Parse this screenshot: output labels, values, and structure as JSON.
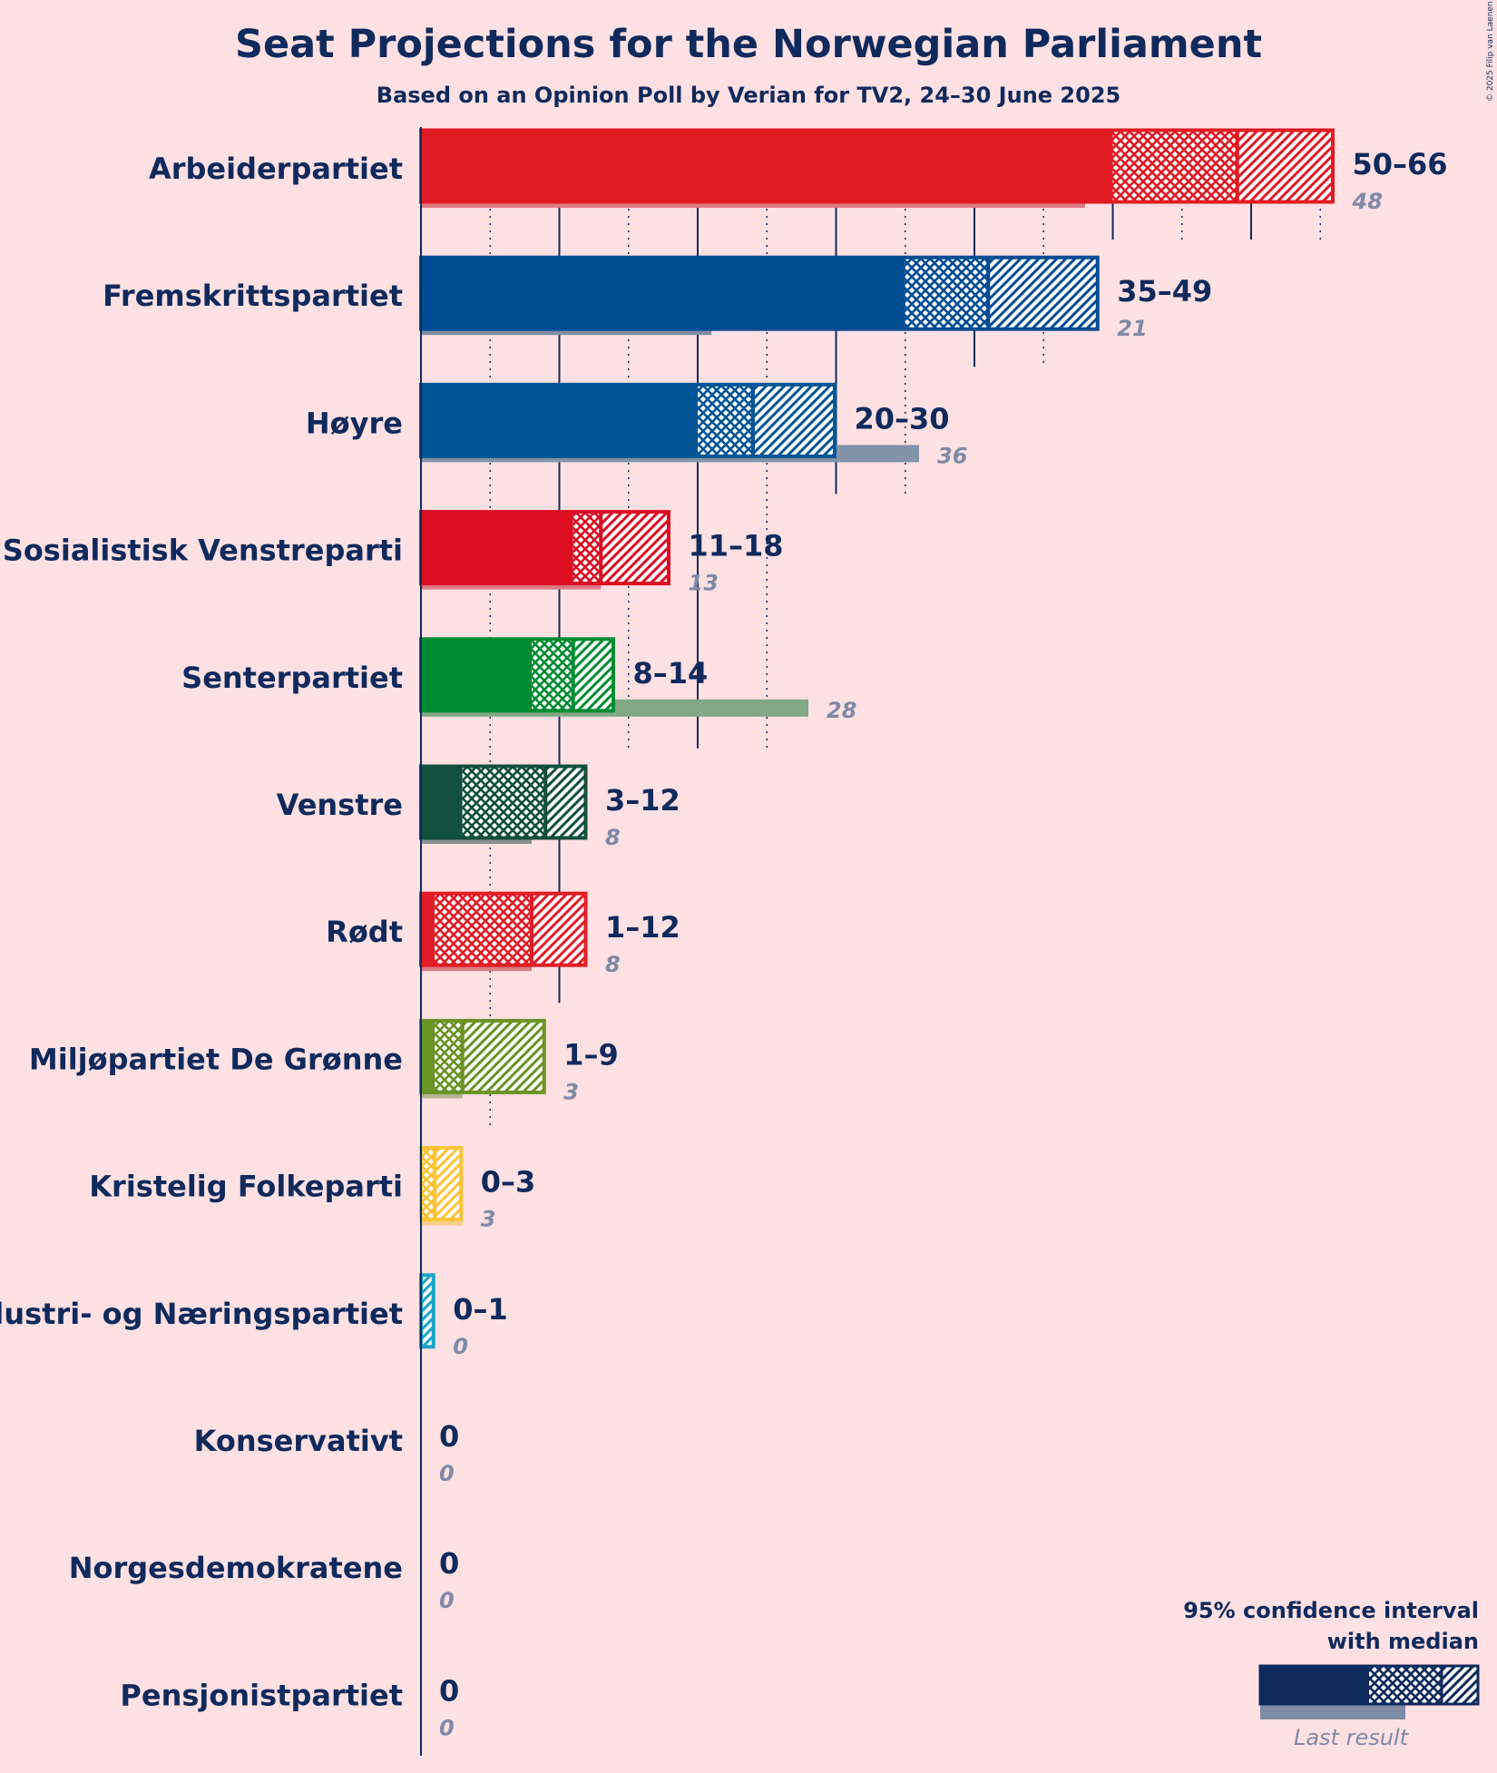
{
  "title": "Seat Projections for the Norwegian Parliament",
  "subtitle": "Based on an Opinion Poll by Verian for TV2, 24–30 June 2025",
  "copyright": "© 2025 Filip van Laenen",
  "legend": {
    "line1": "95% confidence interval",
    "line2": "with median",
    "last_result": "Last result"
  },
  "chart_data": {
    "type": "bar",
    "orientation": "horizontal",
    "title": "Seat Projections for the Norwegian Parliament",
    "xlim": [
      0,
      66
    ],
    "x_gridlines_every": 5,
    "parties": [
      {
        "name": "Arbeiderpartiet",
        "low": 50,
        "median": 59,
        "high": 66,
        "range_label": "50–66",
        "last": 48,
        "last_label": "48",
        "color": "#e01b24",
        "last_color": "#dc7c82"
      },
      {
        "name": "Fremskrittspartiet",
        "low": 35,
        "median": 41,
        "high": 49,
        "range_label": "35–49",
        "last": 21,
        "last_label": "21",
        "color": "#024c93",
        "last_color": "#7f8ea8"
      },
      {
        "name": "Høyre",
        "low": 20,
        "median": 24,
        "high": 30,
        "range_label": "20–30",
        "last": 36,
        "last_label": "36",
        "color": "#025595",
        "last_color": "#8293aa"
      },
      {
        "name": "Sosialistisk Venstreparti",
        "low": 11,
        "median": 13,
        "high": 18,
        "range_label": "11–18",
        "last": 13,
        "last_label": "13",
        "color": "#dc0c21",
        "last_color": "#dc7a85"
      },
      {
        "name": "Senterpartiet",
        "low": 8,
        "median": 11,
        "high": 14,
        "range_label": "8–14",
        "last": 28,
        "last_label": "28",
        "color": "#008c32",
        "last_color": "#82a886"
      },
      {
        "name": "Venstre",
        "low": 3,
        "median": 9,
        "high": 12,
        "range_label": "3–12",
        "last": 8,
        "last_label": "8",
        "color": "#124f3c",
        "last_color": "#8a8f8f"
      },
      {
        "name": "Rødt",
        "low": 1,
        "median": 8,
        "high": 12,
        "range_label": "1–12",
        "last": 8,
        "last_label": "8",
        "color": "#e21d26",
        "last_color": "#dc7b82"
      },
      {
        "name": "Miljøpartiet De Grønne",
        "low": 1,
        "median": 3,
        "high": 9,
        "range_label": "1–9",
        "last": 3,
        "last_label": "3",
        "color": "#6a9325",
        "last_color": "#b4b490"
      },
      {
        "name": "Kristelig Folkeparti",
        "low": 0,
        "median": 1,
        "high": 3,
        "range_label": "0–3",
        "last": 3,
        "last_label": "3",
        "color": "#fec335",
        "last_color": "#fbcf8d"
      },
      {
        "name": "Industri- og Næringspartiet",
        "low": 0,
        "median": 0,
        "high": 1,
        "range_label": "0–1",
        "last": 0,
        "last_label": "0",
        "color": "#1aa3c8",
        "last_color": "#93bccc"
      },
      {
        "name": "Konservativt",
        "low": 0,
        "median": 0,
        "high": 0,
        "range_label": "0",
        "last": 0,
        "last_label": "0",
        "color": "#0f2a5c",
        "last_color": "#7e8aa6"
      },
      {
        "name": "Norgesdemokratene",
        "low": 0,
        "median": 0,
        "high": 0,
        "range_label": "0",
        "last": 0,
        "last_label": "0",
        "color": "#0f2a5c",
        "last_color": "#7e8aa6"
      },
      {
        "name": "Pensjonistpartiet",
        "low": 0,
        "median": 0,
        "high": 0,
        "range_label": "0",
        "last": 0,
        "last_label": "0",
        "color": "#0f2a5c",
        "last_color": "#7e8aa6"
      }
    ]
  }
}
